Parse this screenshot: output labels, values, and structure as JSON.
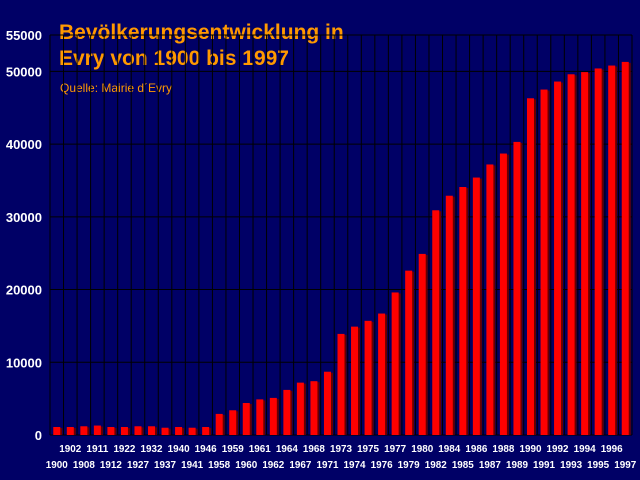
{
  "chart_data": {
    "type": "bar",
    "title_line1": "Bevölkerungsentwicklung in",
    "title_line2": "Evry von 1900 bis 1997",
    "subtitle": "Quelle: Mairie d´Evry",
    "xlabel": "",
    "ylabel": "",
    "ylim": [
      0,
      55000
    ],
    "yticks": [
      0,
      10000,
      20000,
      30000,
      40000,
      50000,
      55000
    ],
    "grid": true,
    "legend": "none",
    "colors": {
      "background": "#000066",
      "bar": "#ff0000",
      "bar_shadow": "#660000",
      "title": "#ff9900",
      "grid": "#000000",
      "tick_text": "#ffffff"
    },
    "categories": [
      "1900",
      "1902",
      "1908",
      "1911",
      "1912",
      "1922",
      "1927",
      "1932",
      "1937",
      "1940",
      "1941",
      "1946",
      "1958",
      "1959",
      "1960",
      "1961",
      "1962",
      "1964",
      "1967",
      "1968",
      "1971",
      "1973",
      "1974",
      "1975",
      "1976",
      "1977",
      "1979",
      "1980",
      "1982",
      "1984",
      "1985",
      "1986",
      "1987",
      "1988",
      "1989",
      "1990",
      "1991",
      "1992",
      "1993",
      "1994",
      "1995",
      "1996",
      "1997"
    ],
    "values": [
      1100,
      1100,
      1200,
      1300,
      1100,
      1100,
      1200,
      1200,
      1000,
      1100,
      1000,
      1100,
      2900,
      3400,
      4400,
      4900,
      5100,
      6200,
      7200,
      7400,
      8700,
      13900,
      14900,
      15700,
      16700,
      19600,
      22600,
      24900,
      30900,
      32900,
      34100,
      35400,
      37200,
      38700,
      40300,
      46300,
      47500,
      48600,
      49600,
      49900,
      50400,
      50800,
      51300
    ]
  }
}
